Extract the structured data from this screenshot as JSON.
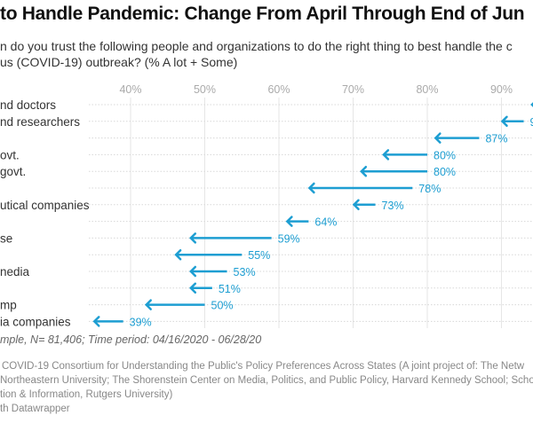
{
  "title": "to Handle Pandemic: Change From April Through End of Jun",
  "subtitle_lines": [
    "n do you trust the following people and organizations to do the right thing to best handle the c",
    "us (COVID-19) outbreak? (% A lot + Some)"
  ],
  "chart_data": {
    "type": "arrow",
    "xlim": [
      35,
      96
    ],
    "ticks": [
      40,
      50,
      60,
      70,
      80,
      90
    ],
    "tick_labels": [
      "40%",
      "50%",
      "60%",
      "70%",
      "80%",
      "90%"
    ],
    "grid": true,
    "arrow_color": "#1d9ed2",
    "rows": [
      {
        "label": "nd doctors",
        "from": null,
        "to": 94,
        "value_label": ""
      },
      {
        "label": "nd researchers",
        "from": 93,
        "to": 90,
        "value_label": "9"
      },
      {
        "label": "",
        "from": 87,
        "to": 81,
        "value_label": "87%"
      },
      {
        "label": "ovt.",
        "from": 80,
        "to": 74,
        "value_label": "80%"
      },
      {
        "label": "govt.",
        "from": 80,
        "to": 71,
        "value_label": "80%"
      },
      {
        "label": "",
        "from": 78,
        "to": 64,
        "value_label": "78%"
      },
      {
        "label": "utical companies",
        "from": 73,
        "to": 70,
        "value_label": "73%"
      },
      {
        "label": "",
        "from": 64,
        "to": 61,
        "value_label": "64%"
      },
      {
        "label": "se",
        "from": 59,
        "to": 48,
        "value_label": "59%"
      },
      {
        "label": "",
        "from": 55,
        "to": 46,
        "value_label": "55%"
      },
      {
        "label": "nedia",
        "from": 53,
        "to": 48,
        "value_label": "53%"
      },
      {
        "label": "",
        "from": 51,
        "to": 48,
        "value_label": "51%"
      },
      {
        "label": "mp",
        "from": 50,
        "to": 42,
        "value_label": "50%"
      },
      {
        "label": "ia companies",
        "from": 39,
        "to": 35,
        "value_label": "39%"
      }
    ]
  },
  "footer": {
    "note": "mple, N= 81,406; Time period: 04/16/2020 - 06/28/20",
    "source_lines": [
      "COVID-19 Consortium for Understanding the Public's Policy Preferences Across States (A joint project of: The Netw",
      "Northeastern University; The Shorenstein Center on Media, Politics, and Public Policy, Harvard Kennedy School; Scho",
      "tion & Information, Rutgers University)",
      "th Datawrapper"
    ]
  }
}
